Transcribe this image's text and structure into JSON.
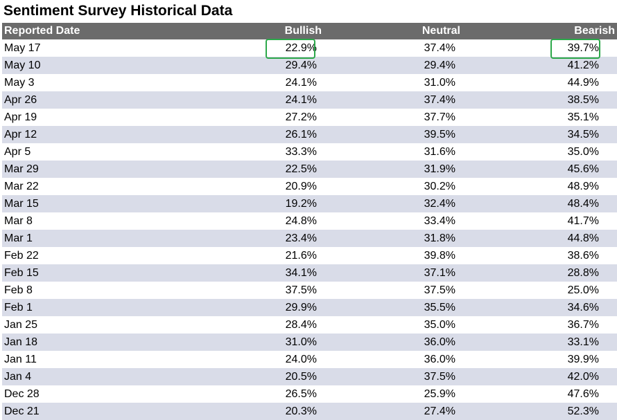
{
  "title": "Sentiment Survey Historical Data",
  "columns": {
    "date": "Reported Date",
    "bullish": "Bullish",
    "neutral": "Neutral",
    "bearish": "Bearish"
  },
  "highlight_color": "#2ca84a",
  "header_color": "#6b6b6b",
  "stripe_color": "#d9dce8",
  "rows": [
    {
      "date": "May 17",
      "bullish": "22.9%",
      "neutral": "37.4%",
      "bearish": "39.7%"
    },
    {
      "date": "May 10",
      "bullish": "29.4%",
      "neutral": "29.4%",
      "bearish": "41.2%"
    },
    {
      "date": "May 3",
      "bullish": "24.1%",
      "neutral": "31.0%",
      "bearish": "44.9%"
    },
    {
      "date": "Apr 26",
      "bullish": "24.1%",
      "neutral": "37.4%",
      "bearish": "38.5%"
    },
    {
      "date": "Apr 19",
      "bullish": "27.2%",
      "neutral": "37.7%",
      "bearish": "35.1%"
    },
    {
      "date": "Apr 12",
      "bullish": "26.1%",
      "neutral": "39.5%",
      "bearish": "34.5%"
    },
    {
      "date": "Apr 5",
      "bullish": "33.3%",
      "neutral": "31.6%",
      "bearish": "35.0%"
    },
    {
      "date": "Mar 29",
      "bullish": "22.5%",
      "neutral": "31.9%",
      "bearish": "45.6%"
    },
    {
      "date": "Mar 22",
      "bullish": "20.9%",
      "neutral": "30.2%",
      "bearish": "48.9%"
    },
    {
      "date": "Mar 15",
      "bullish": "19.2%",
      "neutral": "32.4%",
      "bearish": "48.4%"
    },
    {
      "date": "Mar 8",
      "bullish": "24.8%",
      "neutral": "33.4%",
      "bearish": "41.7%"
    },
    {
      "date": "Mar 1",
      "bullish": "23.4%",
      "neutral": "31.8%",
      "bearish": "44.8%"
    },
    {
      "date": "Feb 22",
      "bullish": "21.6%",
      "neutral": "39.8%",
      "bearish": "38.6%"
    },
    {
      "date": "Feb 15",
      "bullish": "34.1%",
      "neutral": "37.1%",
      "bearish": "28.8%"
    },
    {
      "date": "Feb 8",
      "bullish": "37.5%",
      "neutral": "37.5%",
      "bearish": "25.0%"
    },
    {
      "date": "Feb 1",
      "bullish": "29.9%",
      "neutral": "35.5%",
      "bearish": "34.6%"
    },
    {
      "date": "Jan 25",
      "bullish": "28.4%",
      "neutral": "35.0%",
      "bearish": "36.7%"
    },
    {
      "date": "Jan 18",
      "bullish": "31.0%",
      "neutral": "36.0%",
      "bearish": "33.1%"
    },
    {
      "date": "Jan 11",
      "bullish": "24.0%",
      "neutral": "36.0%",
      "bearish": "39.9%"
    },
    {
      "date": "Jan 4",
      "bullish": "20.5%",
      "neutral": "37.5%",
      "bearish": "42.0%"
    },
    {
      "date": "Dec 28",
      "bullish": "26.5%",
      "neutral": "25.9%",
      "bearish": "47.6%"
    },
    {
      "date": "Dec 21",
      "bullish": "20.3%",
      "neutral": "27.4%",
      "bearish": "52.3%"
    }
  ]
}
